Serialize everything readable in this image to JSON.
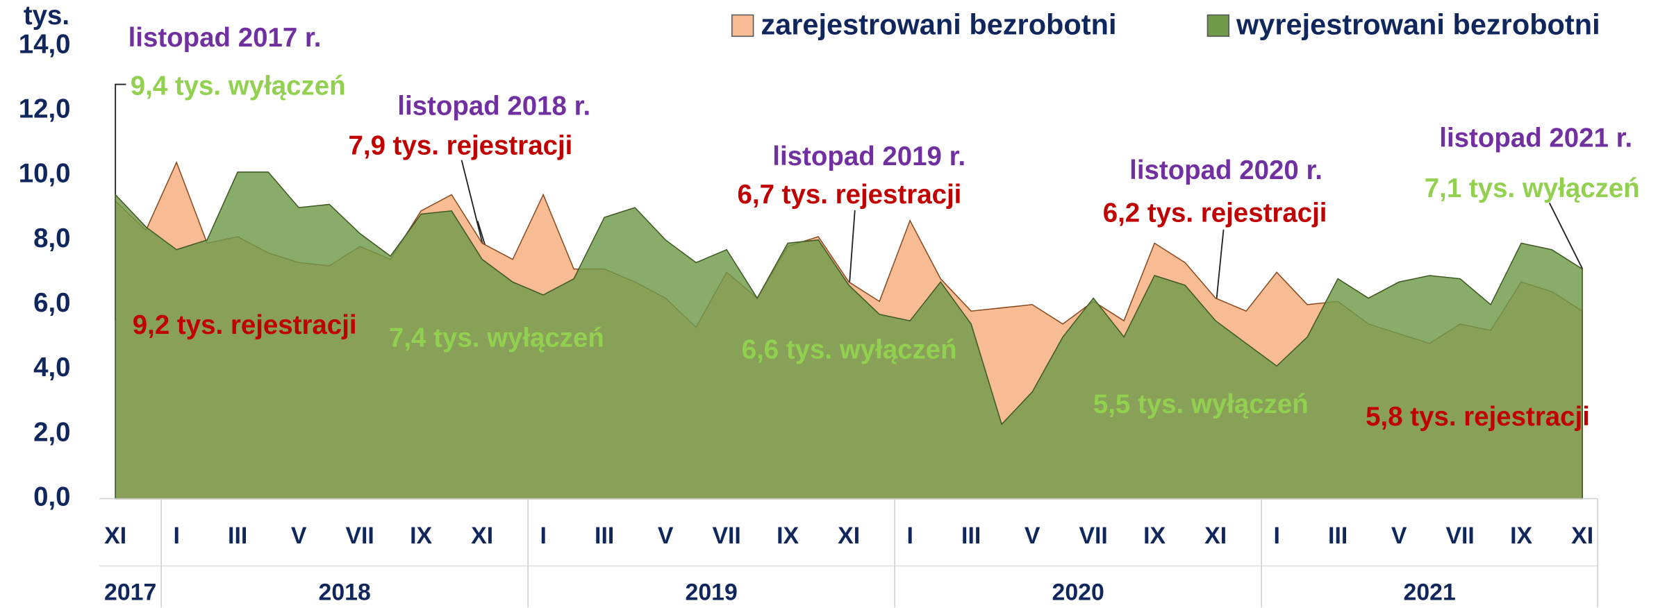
{
  "chart_data": {
    "type": "area",
    "y_label": "tys.",
    "categories": [
      "XI",
      null,
      "I",
      null,
      "III",
      null,
      "V",
      null,
      "VII",
      null,
      "IX",
      null,
      "XI",
      null,
      "I",
      null,
      "III",
      null,
      "V",
      null,
      "VII",
      null,
      "IX",
      null,
      "XI",
      null,
      "I",
      null,
      "III",
      null,
      "V",
      null,
      "VII",
      null,
      "IX",
      null,
      "XI",
      null,
      "I",
      null,
      "III",
      null,
      "V",
      null,
      "VII",
      null,
      "IX",
      null,
      "XI"
    ],
    "years": [
      "2017",
      "2018",
      "2019",
      "2020",
      "2021"
    ],
    "series": [
      {
        "name": "zarejestrowani bezrobotni",
        "color": "#f7bc94",
        "values": [
          9.2,
          8.3,
          10.4,
          7.9,
          8.1,
          7.6,
          7.3,
          7.2,
          7.8,
          7.4,
          8.9,
          9.4,
          7.9,
          7.4,
          9.4,
          7.1,
          7.1,
          6.7,
          6.2,
          5.3,
          7.0,
          6.2,
          7.8,
          8.1,
          6.7,
          6.1,
          8.6,
          6.8,
          5.8,
          5.9,
          6.0,
          5.4,
          6.1,
          5.5,
          7.9,
          7.3,
          6.2,
          5.8,
          7.0,
          6.0,
          6.1,
          5.4,
          5.1,
          4.8,
          5.4,
          5.2,
          6.7,
          6.4,
          5.8
        ]
      },
      {
        "name": "wyrejestrowani bezrobotni",
        "color": "#6f9a4a",
        "values": [
          9.4,
          8.4,
          7.7,
          8.0,
          10.1,
          10.1,
          9.0,
          9.1,
          8.2,
          7.5,
          8.8,
          8.9,
          7.4,
          6.7,
          6.3,
          6.8,
          8.7,
          9.0,
          8.0,
          7.3,
          7.7,
          6.2,
          7.9,
          8.0,
          6.6,
          5.7,
          5.5,
          6.7,
          5.4,
          2.3,
          3.3,
          5.0,
          6.2,
          5.0,
          6.9,
          6.6,
          5.5,
          4.8,
          4.1,
          5.0,
          6.8,
          6.2,
          6.7,
          6.9,
          6.8,
          6.0,
          7.9,
          7.7,
          7.1
        ]
      }
    ],
    "ylim": [
      0,
      14
    ],
    "yticks": [
      {
        "value": 0,
        "label": "0,0"
      },
      {
        "value": 2,
        "label": "2,0"
      },
      {
        "value": 4,
        "label": "4,0"
      },
      {
        "value": 6,
        "label": "6,0"
      },
      {
        "value": 8,
        "label": "8,0"
      },
      {
        "value": 10,
        "label": "10,0"
      },
      {
        "value": 12,
        "label": "12,0"
      },
      {
        "value": 14,
        "label": "14,0"
      }
    ],
    "legend": "top-right",
    "annotations": [
      "listopad 2017 r.",
      "9,4 tys. wyłączeń",
      "9,2 tys. rejestracji",
      "listopad 2018 r.",
      "7,9 tys. rejestracji",
      "7,4 tys. wyłączeń",
      "listopad 2019 r.",
      "6,7 tys. rejestracji",
      "6,6 tys. wyłączeń",
      "listopad 2020 r.",
      "6,2 tys. rejestracji",
      "5,5 tys. wyłączeń",
      "listopad 2021 r.",
      "7,1 tys. wyłączeń",
      "5,8 tys. rejestracji"
    ]
  }
}
